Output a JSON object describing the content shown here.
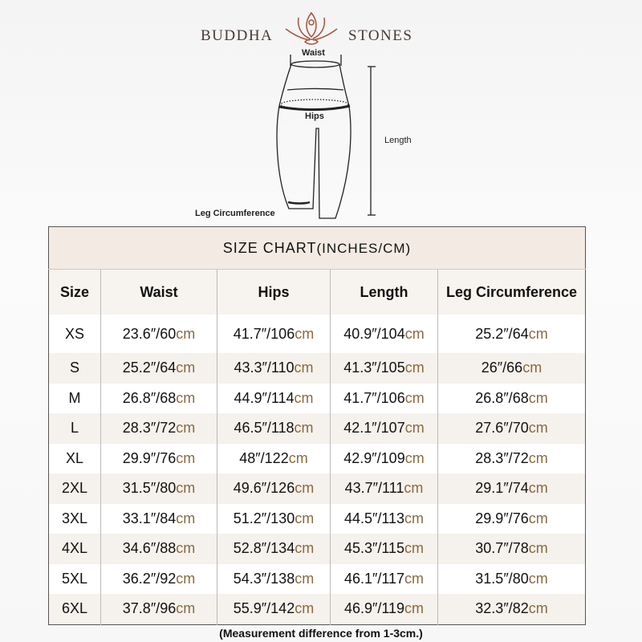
{
  "brand": {
    "left": "BUDDHA",
    "right": "STONES"
  },
  "diagram": {
    "waist": "Waist",
    "hips": "Hips",
    "length": "Length",
    "leg": "Leg Circumference"
  },
  "table": {
    "title": "SIZE CHART",
    "title_units": "(INCHES/CM)",
    "headers": [
      "Size",
      "Waist",
      "Hips",
      "Length",
      "Leg Circumference"
    ],
    "unit": "cm",
    "rows": [
      [
        "XS",
        "23.6″/60",
        "41.7″/106",
        "40.9″/104",
        "25.2″/64"
      ],
      [
        "S",
        "25.2″/64",
        "43.3″/110",
        "41.3″/105",
        "26″/66"
      ],
      [
        "M",
        "26.8″/68",
        "44.9″/114",
        "41.7″/106",
        "26.8″/68"
      ],
      [
        "L",
        "28.3″/72",
        "46.5″/118",
        "42.1″/107",
        "27.6″/70"
      ],
      [
        "XL",
        "29.9″/76",
        "48″/122",
        "42.9″/109",
        "28.3″/72"
      ],
      [
        "2XL",
        "31.5″/80",
        "49.6″/126",
        "43.7″/111",
        "29.1″/74"
      ],
      [
        "3XL",
        "33.1″/84",
        "51.2″/130",
        "44.5″/113",
        "29.9″/76"
      ],
      [
        "4XL",
        "34.6″/88",
        "52.8″/134",
        "45.3″/115",
        "30.7″/78"
      ],
      [
        "5XL",
        "36.2″/92",
        "54.3″/138",
        "46.1″/117",
        "31.5″/80"
      ],
      [
        "6XL",
        "37.8″/96",
        "55.9″/142",
        "46.9″/119",
        "32.3″/82"
      ]
    ]
  },
  "note": "(Measurement difference from 1-3cm.)",
  "colors": {
    "accent": "#a07a50",
    "cm": "#8a6a3e",
    "title_bg": "#f3ebe3",
    "row_shade": "#f5f1ec"
  }
}
